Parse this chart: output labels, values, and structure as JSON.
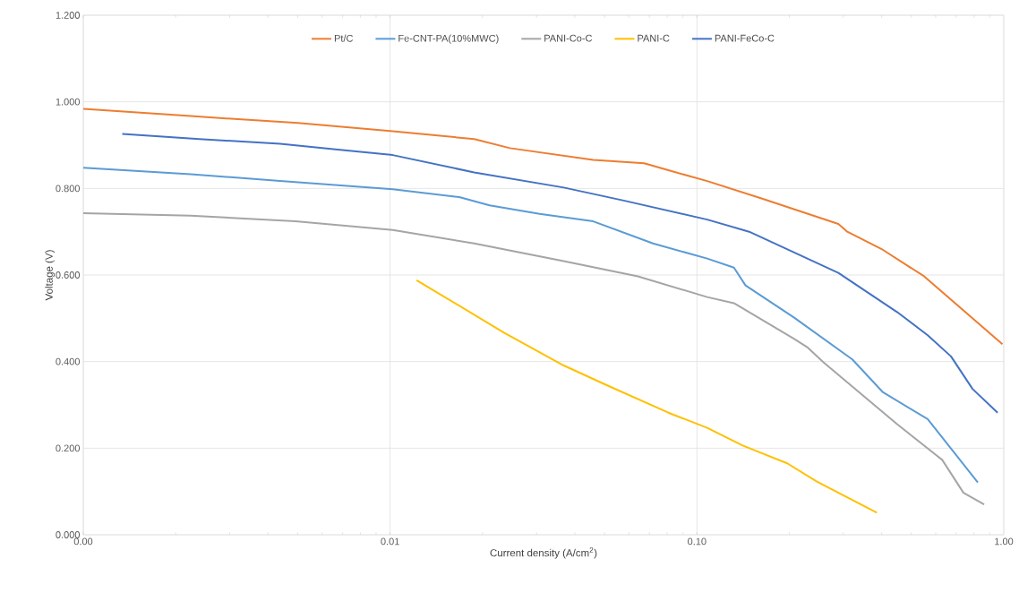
{
  "chart_data": {
    "type": "line",
    "xlabel": "Current density (A/cm$^{2}$)",
    "ylabel": "Voltage (V)",
    "log": "x",
    "grid": true,
    "legend": "top",
    "marker": "none",
    "line_style": "solid",
    "xlim": [
      0.001,
      1
    ],
    "xticks": [
      {
        "value": 0.001,
        "label": "0.00"
      },
      {
        "value": 0.01,
        "label": "0.01"
      },
      {
        "value": 0.1,
        "label": "0.10"
      },
      {
        "value": 1,
        "label": "1.00"
      }
    ],
    "ylim": [
      0,
      1.2
    ],
    "yticks": [
      {
        "value": 0,
        "label": "0.000"
      },
      {
        "value": 0.2,
        "label": "0.200"
      },
      {
        "value": 0.4,
        "label": "0.400"
      },
      {
        "value": 0.6,
        "label": "0.600"
      },
      {
        "value": 0.8,
        "label": "0.800"
      },
      {
        "value": 1.0,
        "label": "1.000"
      },
      {
        "value": 1.2,
        "label": "1.200"
      }
    ],
    "series": [
      {
        "name": "Pt/C",
        "color": "#ed7d31",
        "x": [
          0.001,
          0.00224,
          0.00501,
          0.0102,
          0.0188,
          0.0246,
          0.0459,
          0.0673,
          0.0807,
          0.108,
          0.164,
          0.289,
          0.309,
          0.404,
          0.55,
          0.99
        ],
        "values": [
          0.984,
          0.967,
          0.951,
          0.932,
          0.914,
          0.893,
          0.866,
          0.858,
          0.842,
          0.817,
          0.776,
          0.718,
          0.7,
          0.658,
          0.597,
          0.44
        ]
      },
      {
        "name": "Fe-CNT-PA(10%MWC)",
        "color": "#5b9bd5",
        "x": [
          0.001,
          0.00224,
          0.00438,
          0.0102,
          0.0168,
          0.0211,
          0.0307,
          0.0459,
          0.0719,
          0.108,
          0.132,
          0.144,
          0.207,
          0.321,
          0.404,
          0.565,
          0.823
        ],
        "values": [
          0.848,
          0.833,
          0.817,
          0.798,
          0.78,
          0.761,
          0.741,
          0.724,
          0.673,
          0.638,
          0.617,
          0.576,
          0.502,
          0.405,
          0.329,
          0.267,
          0.121
        ]
      },
      {
        "name": "PANI-Co-C",
        "color": "#a5a5a5",
        "x": [
          0.001,
          0.00224,
          0.00491,
          0.0102,
          0.0188,
          0.0368,
          0.0642,
          0.108,
          0.132,
          0.207,
          0.23,
          0.258,
          0.45,
          0.63,
          0.739,
          0.863
        ],
        "values": [
          0.743,
          0.737,
          0.724,
          0.704,
          0.673,
          0.632,
          0.597,
          0.549,
          0.535,
          0.453,
          0.432,
          0.399,
          0.255,
          0.173,
          0.097,
          0.07
        ]
      },
      {
        "name": "PANI-C",
        "color": "#ffc000",
        "x": [
          0.0122,
          0.0235,
          0.0368,
          0.0514,
          0.0807,
          0.108,
          0.141,
          0.197,
          0.246,
          0.386
        ],
        "values": [
          0.588,
          0.467,
          0.391,
          0.344,
          0.282,
          0.247,
          0.206,
          0.165,
          0.123,
          0.051
        ]
      },
      {
        "name": "PANI-FeCo-C",
        "color": "#4472c4",
        "x": [
          0.00134,
          0.00239,
          0.00438,
          0.00687,
          0.0102,
          0.0188,
          0.0368,
          0.0577,
          0.108,
          0.148,
          0.289,
          0.45,
          0.565,
          0.673,
          0.791,
          0.955
        ],
        "values": [
          0.926,
          0.914,
          0.903,
          0.889,
          0.877,
          0.837,
          0.802,
          0.772,
          0.728,
          0.7,
          0.605,
          0.514,
          0.461,
          0.412,
          0.337,
          0.282
        ]
      }
    ]
  }
}
